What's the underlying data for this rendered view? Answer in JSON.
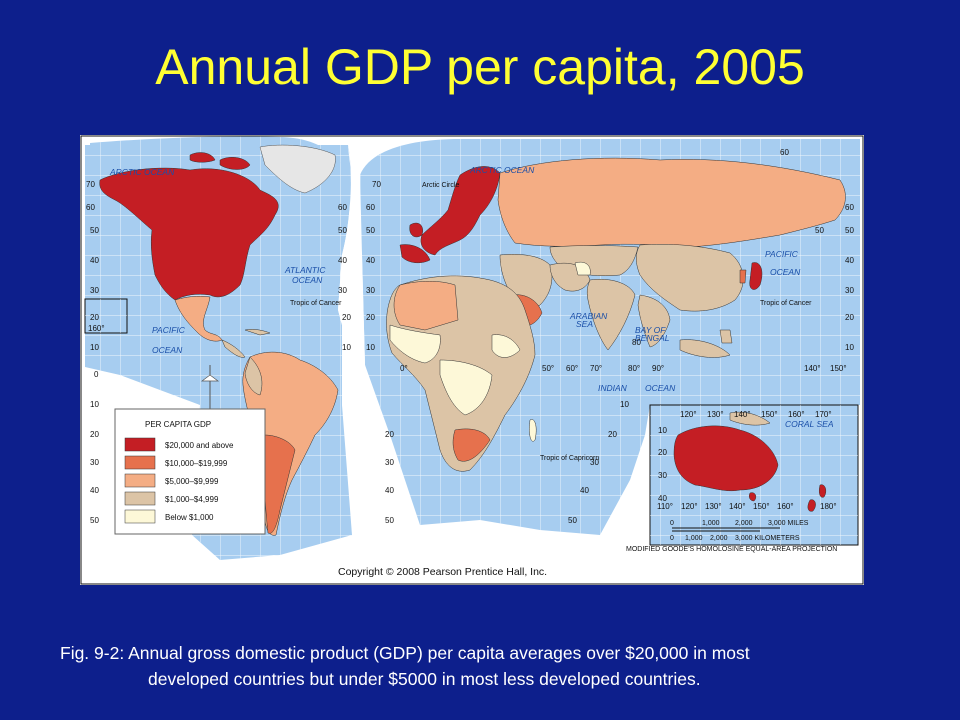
{
  "slide": {
    "title": "Annual GDP per capita, 2005",
    "caption_line1": "Fig. 9-2: Annual gross domestic product (GDP) per capita averages over $20,000 in most",
    "caption_line2": "developed countries but under $5000 in most less developed countries."
  },
  "map": {
    "copyright": "Copyright © 2008 Pearson Prentice Hall, Inc.",
    "projection": "MODIFIED GOODE'S HOMOLOSINE EQUAL-AREA PROJECTION",
    "legend": {
      "title": "PER CAPITA GDP",
      "items": [
        {
          "label": "$20,000 and above",
          "color": "#c41e24"
        },
        {
          "label": "$10,000–$19,999",
          "color": "#e6714d"
        },
        {
          "label": "$5,000–$9,999",
          "color": "#f4ad84"
        },
        {
          "label": "$1,000–$4,999",
          "color": "#dcc4a6"
        },
        {
          "label": "Below $1,000",
          "color": "#fdf8d8"
        }
      ]
    },
    "ocean_labels": {
      "arctic_left": "ARCTIC OCEAN",
      "arctic_right": "ARCTIC OCEAN",
      "atlantic_1": "ATLANTIC",
      "atlantic_2": "OCEAN",
      "pacific_left_1": "PACIFIC",
      "pacific_left_2": "OCEAN",
      "pacific_right_1": "PACIFIC",
      "pacific_right_2": "OCEAN",
      "indian_1": "INDIAN",
      "indian_2": "OCEAN",
      "arabian_1": "ARABIAN",
      "arabian_2": "SEA",
      "bengal_1": "BAY OF",
      "bengal_2": "BENGAL",
      "coral": "CORAL SEA"
    },
    "line_labels": {
      "arctic_circle": "Arctic Circle",
      "tropic_cancer_left": "Tropic of Cancer",
      "tropic_cancer_right": "Tropic of Cancer",
      "tropic_capricorn": "Tropic of Capricorn"
    },
    "scale": {
      "miles": [
        "0",
        "1,000",
        "2,000",
        "3,000 MILES"
      ],
      "km": [
        "0",
        "1,000",
        "2,000",
        "3,000 KILOMETERS"
      ]
    },
    "left_lat_labels": [
      "70",
      "60",
      "50",
      "40",
      "30",
      "20",
      "10",
      "0",
      "10",
      "20",
      "30",
      "40",
      "50"
    ],
    "mid_lat_labels": [
      "60",
      "50",
      "40",
      "30",
      "20",
      "10"
    ],
    "mid_lat_labels_south": [
      "20",
      "30",
      "40",
      "50"
    ],
    "inner_lat_labels": [
      "70",
      "60",
      "50",
      "40",
      "30",
      "20",
      "10"
    ],
    "africa_lat_labels": [
      "10",
      "20",
      "30",
      "40",
      "50"
    ],
    "right_lat_labels": [
      "60",
      "50",
      "40",
      "30",
      "20",
      "10"
    ],
    "inset_lon_labels_top": [
      "120°",
      "130°",
      "140°",
      "150°",
      "160°",
      "170°"
    ],
    "inset_lon_labels_bottom": [
      "110°",
      "120°",
      "130°",
      "140°",
      "150°",
      "160°",
      "180°"
    ],
    "inset_lat_labels": [
      "10",
      "20",
      "30",
      "40"
    ],
    "equator_lon_labels": [
      "0°",
      "50°",
      "60°",
      "70°",
      "80°",
      "90°"
    ],
    "pacific_lon_labels": [
      "140°",
      "150°"
    ],
    "misc_labels": {
      "lon_160": "160°",
      "lat_50r": "50",
      "lat_60r": "60",
      "lat_80": "80"
    }
  }
}
